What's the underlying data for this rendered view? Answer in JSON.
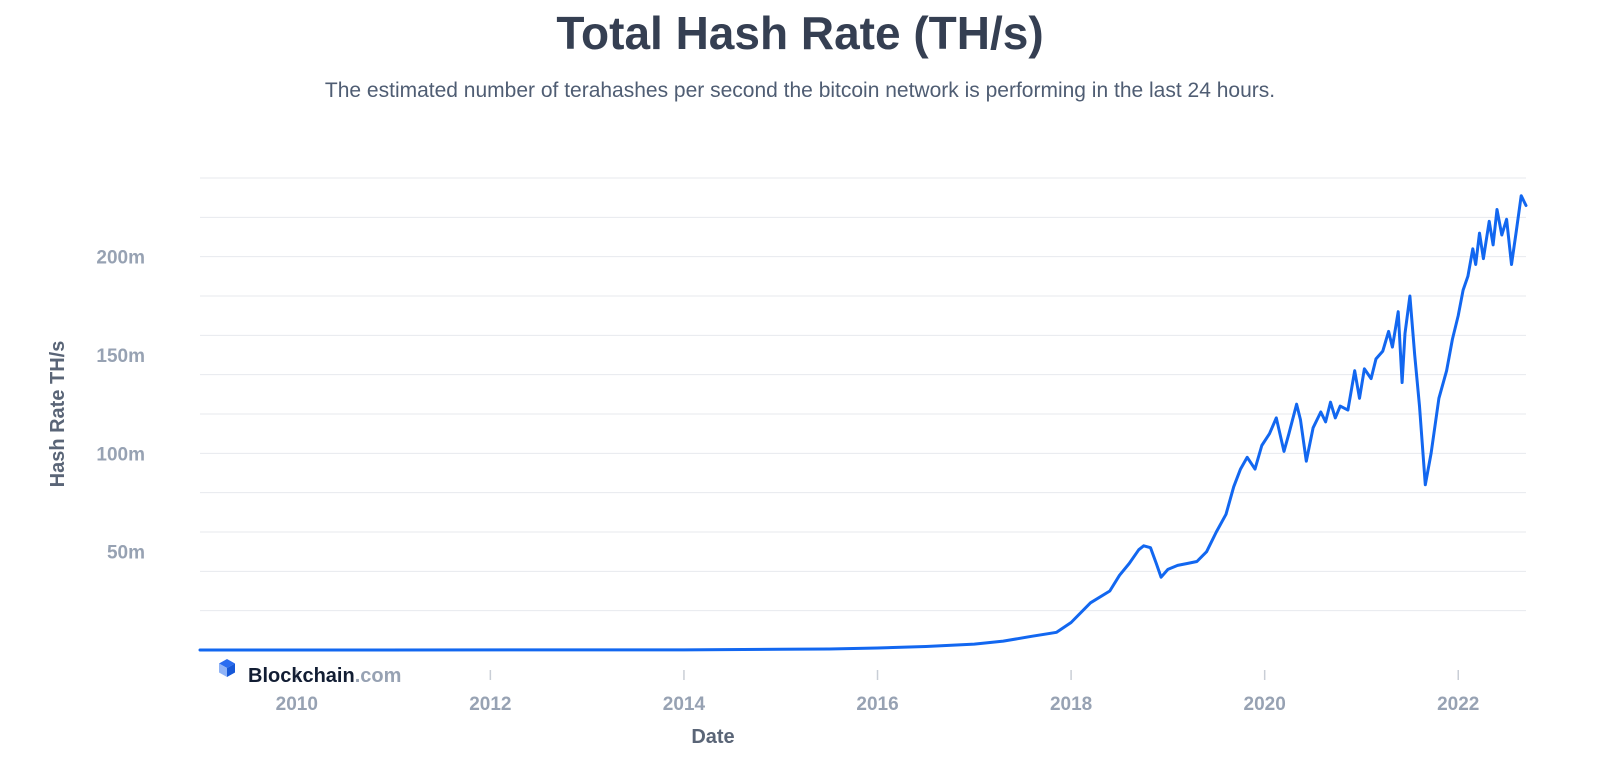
{
  "title": "Total Hash Rate (TH/s)",
  "subtitle": "The estimated number of terahashes per second the bitcoin network is performing in the last 24 hours.",
  "brand": {
    "name": "Blockchain",
    "suffix": ".com",
    "icon": "blockchain-cube-icon"
  },
  "colors": {
    "line": "#1267f0",
    "grid": "#e7eaee",
    "title": "#353f52",
    "tick": "#97a2b3"
  },
  "chart_data": {
    "type": "line",
    "title": "Total Hash Rate (TH/s)",
    "xlabel": "Date",
    "ylabel": "Hash Rate TH/s",
    "xlim": [
      2009.0,
      2022.7
    ],
    "ylim": [
      0,
      240
    ],
    "y_unit": "million TH/s",
    "y_ticks": [
      {
        "value": 50,
        "label": "50m"
      },
      {
        "value": 100,
        "label": "100m"
      },
      {
        "value": 150,
        "label": "150m"
      },
      {
        "value": 200,
        "label": "200m"
      }
    ],
    "x_ticks": [
      {
        "value": 2010,
        "label": "2010"
      },
      {
        "value": 2012,
        "label": "2012"
      },
      {
        "value": 2014,
        "label": "2014"
      },
      {
        "value": 2016,
        "label": "2016"
      },
      {
        "value": 2018,
        "label": "2018"
      },
      {
        "value": 2020,
        "label": "2020"
      },
      {
        "value": 2022,
        "label": "2022"
      }
    ],
    "grid": true,
    "series": [
      {
        "points": [
          [
            2009.0,
            0
          ],
          [
            2014.0,
            0.05
          ],
          [
            2015.0,
            0.4
          ],
          [
            2015.5,
            0.5
          ],
          [
            2016.0,
            1.0
          ],
          [
            2016.5,
            1.8
          ],
          [
            2017.0,
            3.0
          ],
          [
            2017.3,
            4.5
          ],
          [
            2017.6,
            7
          ],
          [
            2017.85,
            9
          ],
          [
            2018.0,
            14
          ],
          [
            2018.2,
            24
          ],
          [
            2018.4,
            30
          ],
          [
            2018.5,
            38
          ],
          [
            2018.6,
            44
          ],
          [
            2018.7,
            51
          ],
          [
            2018.75,
            53
          ],
          [
            2018.82,
            52
          ],
          [
            2018.88,
            44
          ],
          [
            2018.93,
            37
          ],
          [
            2019.0,
            41
          ],
          [
            2019.1,
            43
          ],
          [
            2019.2,
            44
          ],
          [
            2019.3,
            45
          ],
          [
            2019.4,
            50
          ],
          [
            2019.5,
            60
          ],
          [
            2019.6,
            69
          ],
          [
            2019.68,
            83
          ],
          [
            2019.75,
            92
          ],
          [
            2019.82,
            98
          ],
          [
            2019.9,
            92
          ],
          [
            2019.97,
            104
          ],
          [
            2020.05,
            110
          ],
          [
            2020.12,
            118
          ],
          [
            2020.2,
            101
          ],
          [
            2020.25,
            110
          ],
          [
            2020.33,
            125
          ],
          [
            2020.37,
            117
          ],
          [
            2020.43,
            96
          ],
          [
            2020.5,
            113
          ],
          [
            2020.58,
            121
          ],
          [
            2020.63,
            116
          ],
          [
            2020.68,
            126
          ],
          [
            2020.73,
            118
          ],
          [
            2020.78,
            124
          ],
          [
            2020.86,
            122
          ],
          [
            2020.93,
            142
          ],
          [
            2020.98,
            128
          ],
          [
            2021.03,
            143
          ],
          [
            2021.1,
            138
          ],
          [
            2021.15,
            148
          ],
          [
            2021.22,
            152
          ],
          [
            2021.28,
            162
          ],
          [
            2021.32,
            154
          ],
          [
            2021.38,
            172
          ],
          [
            2021.42,
            136
          ],
          [
            2021.45,
            161
          ],
          [
            2021.5,
            180
          ],
          [
            2021.55,
            150
          ],
          [
            2021.6,
            124
          ],
          [
            2021.66,
            84
          ],
          [
            2021.72,
            100
          ],
          [
            2021.8,
            128
          ],
          [
            2021.88,
            142
          ],
          [
            2021.94,
            158
          ],
          [
            2022.0,
            170
          ],
          [
            2022.05,
            183
          ],
          [
            2022.1,
            190
          ],
          [
            2022.15,
            204
          ],
          [
            2022.18,
            196
          ],
          [
            2022.22,
            212
          ],
          [
            2022.26,
            199
          ],
          [
            2022.32,
            218
          ],
          [
            2022.36,
            206
          ],
          [
            2022.4,
            224
          ],
          [
            2022.45,
            211
          ],
          [
            2022.5,
            219
          ],
          [
            2022.55,
            196
          ],
          [
            2022.6,
            213
          ],
          [
            2022.65,
            231
          ],
          [
            2022.7,
            226
          ]
        ]
      }
    ]
  }
}
